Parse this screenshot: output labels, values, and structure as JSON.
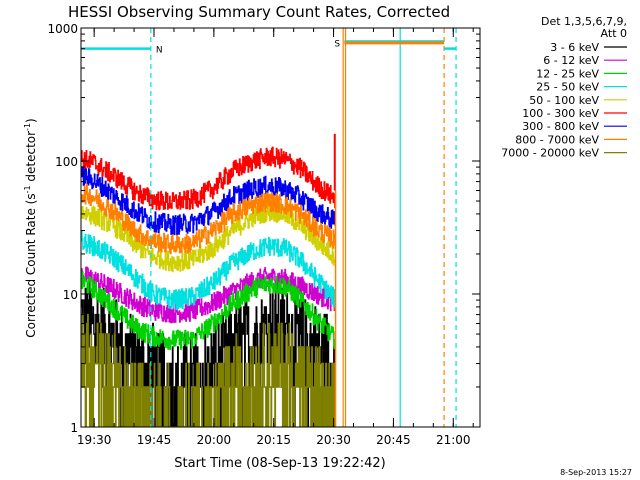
{
  "chart_data": {
    "type": "line",
    "title": "HESSI Observing Summary Count Rates, Corrected",
    "xlabel": "Start Time (08-Sep-13 19:22:42)",
    "ylabel_parts": [
      "Corrected Count Rate (s",
      "-1",
      " detector",
      "-1",
      ")"
    ],
    "x_units": "minutes after 19:22:42",
    "x_range": [
      4,
      104
    ],
    "x_ticks": [
      {
        "t": 7.3,
        "label": "19:30"
      },
      {
        "t": 22.3,
        "label": "19:45"
      },
      {
        "t": 37.3,
        "label": "20:00"
      },
      {
        "t": 52.3,
        "label": "20:15"
      },
      {
        "t": 67.3,
        "label": "20:30"
      },
      {
        "t": 82.3,
        "label": "20:45"
      },
      {
        "t": 97.3,
        "label": "21:00"
      }
    ],
    "y_scale": "log",
    "y_range": [
      1,
      1000
    ],
    "y_ticks": [
      {
        "v": 1,
        "label": "1"
      },
      {
        "v": 10,
        "label": "10"
      },
      {
        "v": 100,
        "label": "100"
      },
      {
        "v": 1000,
        "label": "1000"
      }
    ],
    "legend_position": "right",
    "legend_title": [
      "Det 1,3,5,6,7,9,",
      "Att 0"
    ],
    "data_end_t": 67.8,
    "series": [
      {
        "name": "3 - 6 keV",
        "color": "#000000",
        "values": [
          [
            4,
            6.5
          ],
          [
            7,
            6.0
          ],
          [
            12,
            4.5
          ],
          [
            18,
            3.2
          ],
          [
            22,
            2.6
          ],
          [
            27,
            2.2
          ],
          [
            32,
            2.3
          ],
          [
            37,
            2.8
          ],
          [
            42,
            3.8
          ],
          [
            47,
            4.8
          ],
          [
            51,
            5.5
          ],
          [
            55,
            5.4
          ],
          [
            59,
            4.8
          ],
          [
            63,
            3.8
          ],
          [
            67.8,
            3.0
          ]
        ]
      },
      {
        "name": "6 - 12 keV",
        "color": "#d000d0",
        "values": [
          [
            4,
            14
          ],
          [
            7,
            13
          ],
          [
            12,
            11
          ],
          [
            18,
            8.5
          ],
          [
            22,
            7.5
          ],
          [
            27,
            7.2
          ],
          [
            32,
            7.4
          ],
          [
            37,
            8.5
          ],
          [
            42,
            10.5
          ],
          [
            47,
            12.5
          ],
          [
            51,
            13.5
          ],
          [
            55,
            13
          ],
          [
            59,
            11.5
          ],
          [
            63,
            10
          ],
          [
            67.8,
            8.5
          ]
        ]
      },
      {
        "name": "12 - 25 keV",
        "color": "#00d000",
        "values": [
          [
            4,
            12.5
          ],
          [
            7,
            11
          ],
          [
            12,
            8
          ],
          [
            18,
            5.5
          ],
          [
            22,
            4.8
          ],
          [
            27,
            4.5
          ],
          [
            32,
            4.6
          ],
          [
            37,
            6
          ],
          [
            42,
            8.5
          ],
          [
            47,
            11
          ],
          [
            51,
            12
          ],
          [
            55,
            11.5
          ],
          [
            59,
            9
          ],
          [
            63,
            6.5
          ],
          [
            67.8,
            4.5
          ]
        ]
      },
      {
        "name": "25 - 50 keV",
        "color": "#00e0e0",
        "values": [
          [
            4,
            25
          ],
          [
            7,
            23
          ],
          [
            12,
            19
          ],
          [
            18,
            13
          ],
          [
            22,
            10
          ],
          [
            27,
            9
          ],
          [
            32,
            9.5
          ],
          [
            37,
            12
          ],
          [
            42,
            17
          ],
          [
            47,
            21
          ],
          [
            51,
            23
          ],
          [
            55,
            22
          ],
          [
            59,
            18
          ],
          [
            63,
            13
          ],
          [
            67.8,
            9
          ]
        ]
      },
      {
        "name": "50 - 100 keV",
        "color": "#d0d000",
        "values": [
          [
            4,
            42
          ],
          [
            7,
            39
          ],
          [
            12,
            33
          ],
          [
            18,
            23
          ],
          [
            22,
            19
          ],
          [
            27,
            17.5
          ],
          [
            32,
            18
          ],
          [
            37,
            22
          ],
          [
            42,
            30
          ],
          [
            47,
            38
          ],
          [
            51,
            42
          ],
          [
            55,
            40
          ],
          [
            59,
            33
          ],
          [
            63,
            25
          ],
          [
            67.8,
            19
          ]
        ]
      },
      {
        "name": "100 - 300 keV",
        "color": "#ff0000",
        "values": [
          [
            4,
            105
          ],
          [
            7,
            98
          ],
          [
            12,
            78
          ],
          [
            18,
            58
          ],
          [
            22,
            51
          ],
          [
            27,
            49
          ],
          [
            32,
            51
          ],
          [
            37,
            62
          ],
          [
            42,
            84
          ],
          [
            47,
            100
          ],
          [
            51,
            108
          ],
          [
            55,
            103
          ],
          [
            59,
            88
          ],
          [
            63,
            66
          ],
          [
            67.8,
            52
          ]
        ]
      },
      {
        "name": "300 - 800 keV",
        "color": "#0000ee",
        "values": [
          [
            4,
            78
          ],
          [
            7,
            72
          ],
          [
            12,
            56
          ],
          [
            18,
            41
          ],
          [
            22,
            35
          ],
          [
            27,
            33
          ],
          [
            32,
            34
          ],
          [
            37,
            41
          ],
          [
            42,
            54
          ],
          [
            47,
            62
          ],
          [
            51,
            65
          ],
          [
            55,
            62
          ],
          [
            59,
            53
          ],
          [
            63,
            42
          ],
          [
            67.8,
            35
          ]
        ]
      },
      {
        "name": "800 - 7000 keV",
        "color": "#ff8000",
        "values": [
          [
            4,
            58
          ],
          [
            7,
            54
          ],
          [
            12,
            42
          ],
          [
            18,
            29
          ],
          [
            22,
            25
          ],
          [
            27,
            23.5
          ],
          [
            32,
            24
          ],
          [
            37,
            30
          ],
          [
            42,
            40
          ],
          [
            47,
            47
          ],
          [
            51,
            50
          ],
          [
            55,
            47
          ],
          [
            59,
            40
          ],
          [
            63,
            31
          ],
          [
            67.8,
            25
          ]
        ]
      },
      {
        "name": "7000 - 20000 keV",
        "color": "#808000",
        "values": [
          [
            4,
            3.2
          ],
          [
            7,
            3.0
          ],
          [
            12,
            2.4
          ],
          [
            18,
            1.8
          ],
          [
            22,
            1.5
          ],
          [
            27,
            1.3
          ],
          [
            32,
            1.3
          ],
          [
            37,
            1.6
          ],
          [
            42,
            2.0
          ],
          [
            47,
            2.6
          ],
          [
            51,
            3.0
          ],
          [
            55,
            2.9
          ],
          [
            59,
            2.4
          ],
          [
            63,
            1.9
          ],
          [
            67.8,
            1.5
          ]
        ]
      }
    ],
    "annotations": [
      {
        "text": "N",
        "kind": "night",
        "color": "#00e0e0",
        "bar": [
          4,
          21.5
        ],
        "level": 700
      },
      {
        "text": "S",
        "kind": "saa",
        "color": "#ff8000",
        "bar": [
          70,
          95
        ],
        "level": 780
      }
    ],
    "markers": [
      {
        "t": 21.5,
        "color": "#00e0e0",
        "style": "dashed"
      },
      {
        "t": 69.7,
        "color": "#ff8000",
        "style": "solid"
      },
      {
        "t": 70.3,
        "color": "#ff8000",
        "style": "solid"
      },
      {
        "t": 84,
        "color": "#00e0e0",
        "style": "solid"
      },
      {
        "t": 95,
        "color": "#ff8000",
        "style": "dashed"
      },
      {
        "t": 98,
        "color": "#00e0e0",
        "style": "dashed"
      }
    ],
    "footer_date": "8-Sep-2013 15:27"
  }
}
